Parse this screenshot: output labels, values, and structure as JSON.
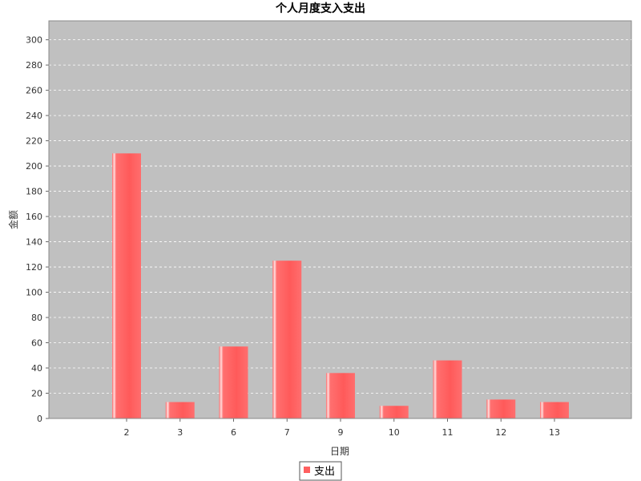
{
  "chart_data": {
    "type": "bar",
    "title": "个人月度支入支出",
    "xlabel": "日期",
    "ylabel": "金额",
    "categories": [
      "2",
      "3",
      "6",
      "7",
      "9",
      "10",
      "11",
      "12",
      "13"
    ],
    "series": [
      {
        "name": "支出",
        "values": [
          210,
          13,
          57,
          125,
          36,
          10,
          46,
          15,
          13
        ],
        "color": "#ff6060"
      }
    ],
    "ylim": [
      0,
      315
    ],
    "yticks": [
      0,
      20,
      40,
      60,
      80,
      100,
      120,
      140,
      160,
      180,
      200,
      220,
      240,
      260,
      280,
      300
    ],
    "grid": true,
    "plot_background": "#c0c0c0",
    "legend_position": "bottom"
  }
}
